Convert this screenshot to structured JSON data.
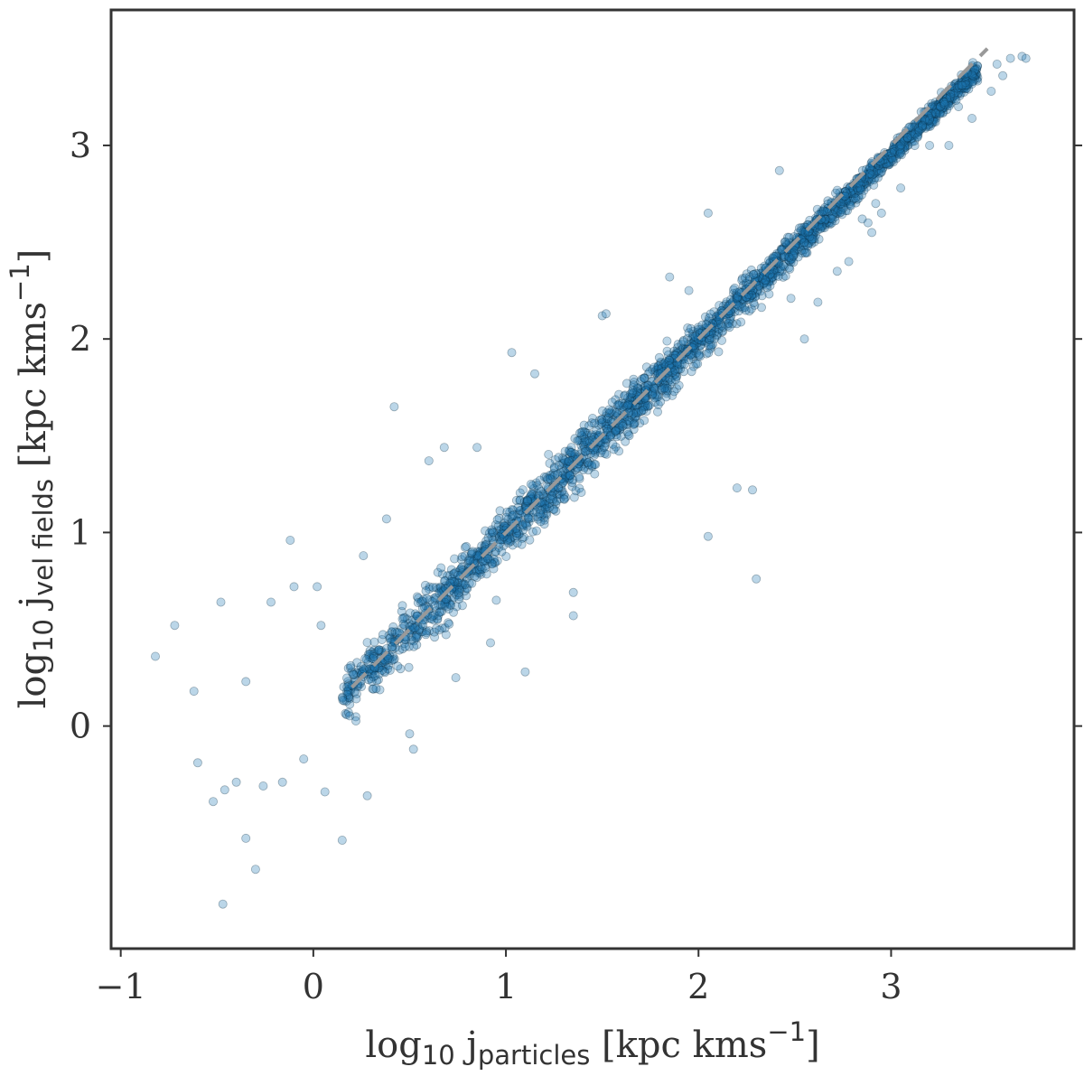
{
  "chart_data": {
    "type": "scatter",
    "title": "",
    "xlabel": {
      "prefix": "log",
      "prefix_sub": "10",
      "var": " j",
      "var_sub": "particles",
      "suffix": " [kpc kms",
      "suffix_sup": "−1",
      "end": "]"
    },
    "ylabel": {
      "prefix": "log",
      "prefix_sub": "10",
      "var": " j",
      "var_sub": "vel fields",
      "suffix": " [kpc kms",
      "suffix_sup": "−1",
      "end": "]"
    },
    "xlim": [
      -1.05,
      3.95
    ],
    "ylim": [
      -1.15,
      3.7
    ],
    "x_ticks": [
      -1,
      0,
      1,
      2,
      3
    ],
    "x_tick_labels": [
      "−1",
      "0",
      "1",
      "2",
      "3"
    ],
    "y_ticks": [
      0,
      1,
      2,
      3
    ],
    "y_tick_labels": [
      "0",
      "1",
      "2",
      "3"
    ],
    "reference_line": {
      "from": [
        0.2,
        0.2
      ],
      "to": [
        3.5,
        3.5
      ],
      "style": "dashed",
      "color": "#999999"
    },
    "point_color": "#1f77b4",
    "point_edge_color": "#0a2a40",
    "point_alpha": 0.3,
    "grid": false,
    "legend": "none",
    "outliers": [
      [
        -0.82,
        0.36
      ],
      [
        -0.72,
        0.52
      ],
      [
        -0.62,
        0.18
      ],
      [
        -0.6,
        -0.19
      ],
      [
        -0.52,
        -0.39
      ],
      [
        -0.48,
        0.64
      ],
      [
        -0.47,
        -0.92
      ],
      [
        -0.46,
        -0.33
      ],
      [
        -0.4,
        -0.29
      ],
      [
        -0.35,
        0.23
      ],
      [
        -0.35,
        -0.58
      ],
      [
        -0.3,
        -0.74
      ],
      [
        -0.26,
        -0.31
      ],
      [
        -0.22,
        0.64
      ],
      [
        -0.16,
        -0.29
      ],
      [
        -0.12,
        0.96
      ],
      [
        -0.1,
        0.72
      ],
      [
        -0.05,
        -0.17
      ],
      [
        0.02,
        0.72
      ],
      [
        0.04,
        0.52
      ],
      [
        0.06,
        -0.34
      ],
      [
        0.15,
        -0.59
      ],
      [
        0.18,
        0.23
      ],
      [
        0.26,
        0.88
      ],
      [
        0.28,
        -0.36
      ],
      [
        0.38,
        1.07
      ],
      [
        0.42,
        1.65
      ],
      [
        0.5,
        -0.04
      ],
      [
        0.52,
        -0.12
      ],
      [
        0.6,
        1.37
      ],
      [
        0.68,
        1.44
      ],
      [
        0.74,
        0.25
      ],
      [
        0.85,
        1.44
      ],
      [
        0.92,
        0.43
      ],
      [
        0.95,
        0.65
      ],
      [
        1.03,
        1.93
      ],
      [
        1.1,
        0.28
      ],
      [
        1.15,
        1.82
      ],
      [
        1.35,
        0.69
      ],
      [
        1.35,
        0.57
      ],
      [
        1.45,
        1.59
      ],
      [
        1.5,
        2.12
      ],
      [
        1.52,
        2.13
      ],
      [
        1.62,
        1.47
      ],
      [
        1.72,
        1.65
      ],
      [
        1.8,
        1.82
      ],
      [
        1.85,
        2.32
      ],
      [
        1.95,
        2.25
      ],
      [
        2.05,
        2.65
      ],
      [
        2.05,
        0.98
      ],
      [
        2.2,
        1.23
      ],
      [
        2.28,
        1.22
      ],
      [
        2.3,
        0.76
      ],
      [
        2.42,
        2.87
      ],
      [
        2.48,
        2.21
      ],
      [
        2.55,
        2.0
      ],
      [
        2.62,
        2.19
      ],
      [
        2.72,
        2.35
      ],
      [
        2.78,
        2.4
      ],
      [
        2.85,
        2.62
      ],
      [
        2.88,
        2.6
      ],
      [
        2.92,
        2.7
      ],
      [
        3.0,
        2.95
      ],
      [
        3.05,
        2.78
      ],
      [
        3.12,
        3.05
      ],
      [
        3.2,
        3.0
      ],
      [
        3.3,
        3.0
      ],
      [
        3.42,
        3.14
      ],
      [
        3.52,
        3.28
      ],
      [
        3.55,
        3.42
      ],
      [
        3.62,
        3.45
      ],
      [
        3.68,
        3.46
      ],
      [
        3.7,
        3.45
      ],
      [
        3.45,
        3.35
      ],
      [
        3.58,
        3.36
      ],
      [
        3.35,
        3.2
      ],
      [
        2.95,
        2.65
      ],
      [
        2.9,
        2.55
      ]
    ]
  }
}
